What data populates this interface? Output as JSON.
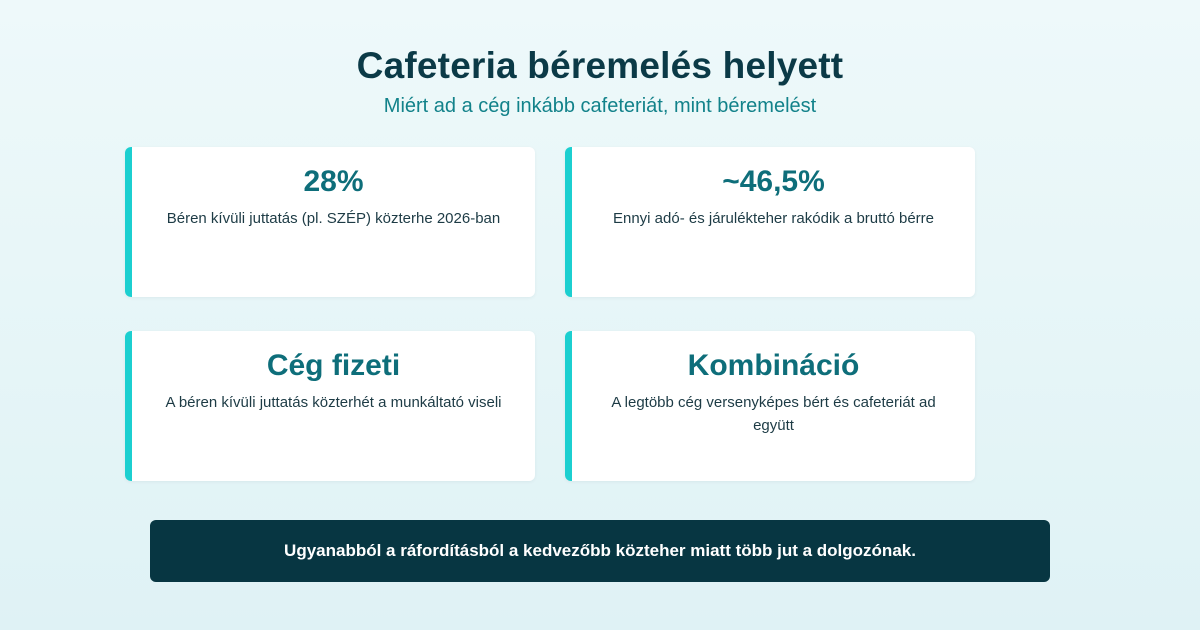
{
  "header": {
    "title": "Cafeteria béremelés helyett",
    "subtitle": "Miért ad a cég inkább cafeteriát, mint béremelést"
  },
  "cards": [
    {
      "value": "28%",
      "description": "Béren kívüli juttatás (pl. SZÉP) közterhe 2026-ban"
    },
    {
      "value": "~46,5%",
      "description": "Ennyi adó- és járulékteher rakódik a bruttó bérre"
    },
    {
      "value": "Cég fizeti",
      "description": "A béren kívüli juttatás közterhét a munkáltató viseli"
    },
    {
      "value": "Kombináció",
      "description": "A legtöbb cég versenyképes bért és cafeteriát ad együtt"
    }
  ],
  "banner": {
    "text": "Ugyanabból a ráfordításból a kedvezőbb közteher miatt több jut a dolgozónak."
  },
  "colors": {
    "background": "#eef9fa",
    "title": "#0b3a47",
    "subtitle": "#12828a",
    "accent": "#1ccfd0",
    "value": "#0e6e7a",
    "banner": "#073642"
  }
}
